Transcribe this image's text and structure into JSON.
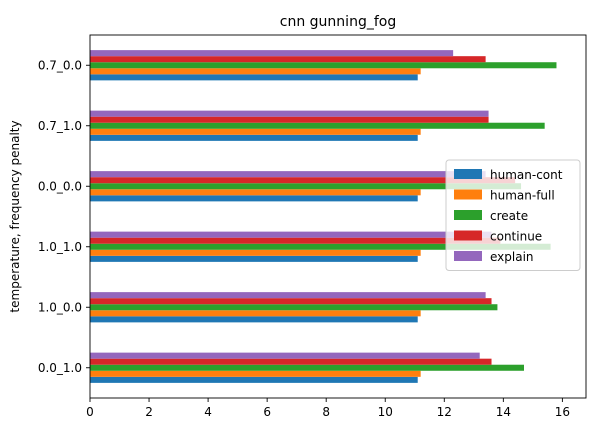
{
  "chart_data": {
    "type": "bar",
    "orientation": "horizontal",
    "title": "cnn gunning_fog",
    "xlabel": "",
    "ylabel": "temperature, frequency penalty",
    "categories": [
      "0.0_1.0",
      "1.0_0.0",
      "1.0_1.0",
      "0.0_0.0",
      "0.7_1.0",
      "0.7_0.0"
    ],
    "xlim": [
      0,
      16.8
    ],
    "xticks": [
      0,
      2,
      4,
      6,
      8,
      10,
      12,
      14,
      16
    ],
    "grid": false,
    "legend_position": "center-right",
    "series": [
      {
        "name": "human-cont",
        "color": "#1f77b4",
        "values": [
          11.1,
          11.1,
          11.1,
          11.1,
          11.1,
          11.1
        ]
      },
      {
        "name": "human-full",
        "color": "#ff7f0e",
        "values": [
          11.2,
          11.2,
          11.2,
          11.2,
          11.2,
          11.2
        ]
      },
      {
        "name": "create",
        "color": "#2ca02c",
        "values": [
          14.7,
          13.8,
          15.6,
          14.6,
          15.4,
          15.8
        ]
      },
      {
        "name": "continue",
        "color": "#d62728",
        "values": [
          13.6,
          13.6,
          13.9,
          14.4,
          13.5,
          13.4
        ]
      },
      {
        "name": "explain",
        "color": "#9467bd",
        "values": [
          13.2,
          13.4,
          13.6,
          13.4,
          13.5,
          12.3
        ]
      }
    ]
  }
}
